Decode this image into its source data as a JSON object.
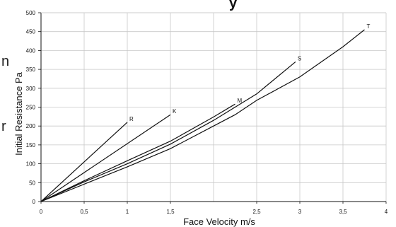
{
  "page": {
    "clipped_title_fragment": "y",
    "left_text_fragments": [
      "n",
      "r"
    ]
  },
  "chart_data": {
    "type": "line",
    "xlabel": "Face Velocity m/s",
    "ylabel": "Initial Resistance Pa",
    "xlim": [
      0,
      4
    ],
    "ylim": [
      0,
      500
    ],
    "x_ticks": [
      {
        "value": 0,
        "label": "0"
      },
      {
        "value": 0.5,
        "label": "0,5"
      },
      {
        "value": 1,
        "label": "1"
      },
      {
        "value": 1.5,
        "label": "1,5"
      },
      {
        "value": 2.5,
        "label": "2,5"
      },
      {
        "value": 3,
        "label": "3"
      },
      {
        "value": 3.5,
        "label": "3,5"
      },
      {
        "value": 4,
        "label": "4"
      }
    ],
    "x_gridlines": [
      0.5,
      1,
      1.5,
      2,
      2.5,
      3,
      3.5,
      4
    ],
    "y_ticks": [
      0,
      50,
      100,
      150,
      200,
      250,
      300,
      350,
      400,
      450,
      500
    ],
    "grid": true,
    "colors": {
      "line": "#111111",
      "grid": "#c8c8c8",
      "axis": "#111111"
    },
    "series": [
      {
        "name": "R",
        "points": [
          [
            0,
            0
          ],
          [
            1.0,
            210
          ]
        ]
      },
      {
        "name": "K",
        "points": [
          [
            0,
            0
          ],
          [
            1.5,
            230
          ]
        ]
      },
      {
        "name": "M",
        "points": [
          [
            0,
            0
          ],
          [
            0.5,
            55
          ],
          [
            1,
            108
          ],
          [
            1.5,
            160
          ],
          [
            2,
            224
          ],
          [
            2.25,
            258
          ]
        ]
      },
      {
        "name": "S",
        "points": [
          [
            0,
            0
          ],
          [
            0.5,
            52
          ],
          [
            1,
            100
          ],
          [
            1.5,
            152
          ],
          [
            2,
            215
          ],
          [
            2.5,
            285
          ],
          [
            2.95,
            370
          ]
        ]
      },
      {
        "name": "T",
        "points": [
          [
            0,
            0
          ],
          [
            0.5,
            46
          ],
          [
            1,
            92
          ],
          [
            1.5,
            140
          ],
          [
            2,
            200
          ],
          [
            2.25,
            230
          ],
          [
            2.5,
            268
          ],
          [
            3,
            330
          ],
          [
            3.5,
            410
          ],
          [
            3.75,
            455
          ]
        ]
      }
    ]
  }
}
